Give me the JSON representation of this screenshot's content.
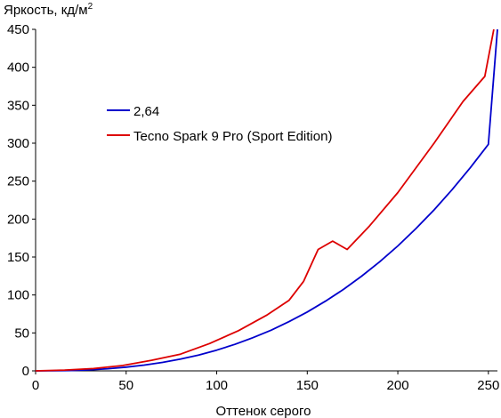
{
  "chart_data": {
    "type": "line",
    "ylabel": "Яркость, кд/м",
    "ylabel_sup": "2",
    "xlabel": "Оттенок серого",
    "xlim": [
      0,
      255
    ],
    "ylim": [
      0,
      450
    ],
    "xticks": [
      0,
      50,
      100,
      150,
      200,
      250
    ],
    "yticks": [
      0,
      50,
      100,
      150,
      200,
      250,
      300,
      350,
      400,
      450
    ],
    "grid": false,
    "legend_position": "upper-left inside plot",
    "series": [
      {
        "name": "2,64",
        "color": "#0000cc",
        "x": [
          0,
          10,
          20,
          30,
          40,
          50,
          60,
          70,
          80,
          90,
          100,
          110,
          120,
          130,
          140,
          150,
          160,
          170,
          180,
          190,
          200,
          210,
          220,
          230,
          240,
          250,
          255
        ],
        "y": [
          0,
          0.1,
          0.5,
          1.4,
          2.8,
          4.9,
          7.6,
          11.1,
          15.6,
          20.9,
          27.3,
          34.9,
          43.7,
          53.6,
          64.9,
          77.6,
          91.8,
          107.3,
          124.8,
          143.8,
          164.7,
          187.5,
          212.1,
          238.8,
          267.6,
          298.5,
          450
        ]
      },
      {
        "name": "Tecno Spark 9 Pro (Sport Edition)",
        "color": "#dd0000",
        "x": [
          0,
          16,
          32,
          48,
          64,
          80,
          96,
          112,
          128,
          140,
          148,
          156,
          164,
          172,
          184,
          200,
          220,
          236,
          248,
          253
        ],
        "y": [
          0,
          1,
          3,
          7,
          14,
          22,
          36,
          53,
          74,
          93,
          118,
          160,
          171,
          160,
          190,
          235,
          300,
          355,
          388,
          450
        ]
      }
    ]
  }
}
